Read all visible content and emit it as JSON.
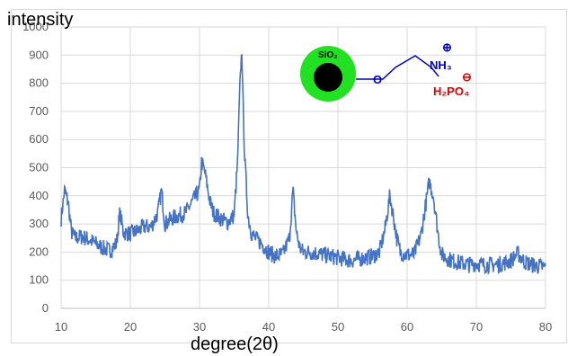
{
  "chart_data": {
    "type": "line",
    "title": "",
    "ylabel": "intensity",
    "xlabel": "degree(2θ)",
    "xlim": [
      10,
      80
    ],
    "ylim": [
      0,
      1000
    ],
    "xticks": [
      "10",
      "20",
      "30",
      "40",
      "50",
      "60",
      "70",
      "80"
    ],
    "yticks": [
      "0",
      "100",
      "200",
      "300",
      "400",
      "500",
      "600",
      "700",
      "800",
      "900",
      "1000"
    ],
    "grid": true,
    "line_color": "#4472c4",
    "series": [
      {
        "x": [
          10,
          10.5,
          11,
          11.5,
          12,
          13,
          14,
          15,
          16,
          17,
          18,
          18.5,
          19,
          20,
          21,
          22,
          23,
          24,
          24.5,
          25,
          26,
          27,
          28,
          29,
          30,
          30.3,
          30.8,
          31.5,
          32,
          33,
          34,
          35,
          35.5,
          35.8,
          36.1,
          36.5,
          37,
          37.5,
          38,
          39,
          40,
          41,
          42,
          43,
          43.5,
          44,
          44.5,
          45,
          46,
          47,
          48,
          49,
          50,
          51,
          52,
          53,
          54,
          55,
          56,
          56.8,
          57.5,
          58,
          58.5,
          59,
          60,
          61,
          62,
          62.5,
          63.2,
          63.8,
          64.5,
          65,
          66,
          67,
          68,
          69,
          70,
          71,
          72,
          73,
          74,
          75,
          76,
          77,
          78,
          79,
          80
        ],
        "y": [
          320,
          420,
          380,
          270,
          250,
          255,
          245,
          230,
          215,
          205,
          230,
          340,
          270,
          265,
          275,
          290,
          290,
          340,
          420,
          300,
          320,
          330,
          340,
          380,
          420,
          520,
          480,
          380,
          340,
          320,
          305,
          330,
          520,
          780,
          920,
          550,
          330,
          270,
          250,
          230,
          200,
          185,
          190,
          250,
          420,
          270,
          215,
          200,
          200,
          195,
          190,
          185,
          180,
          175,
          170,
          175,
          180,
          185,
          200,
          280,
          400,
          330,
          250,
          200,
          190,
          190,
          260,
          340,
          450,
          400,
          260,
          190,
          175,
          165,
          160,
          155,
          160,
          155,
          155,
          155,
          160,
          170,
          195,
          165,
          155,
          150,
          145
        ]
      }
    ]
  },
  "inset": {
    "core_label": "SiO₂",
    "linker_atom": "O",
    "amine_label": "NH₃",
    "amine_charge": "⊕",
    "counter_ion": "H₂PO₄",
    "counter_charge": "⊖",
    "shell_color": "#22e022",
    "core_color": "#000000",
    "bond_color": "#0000cc",
    "ion_color": "#e00000"
  }
}
